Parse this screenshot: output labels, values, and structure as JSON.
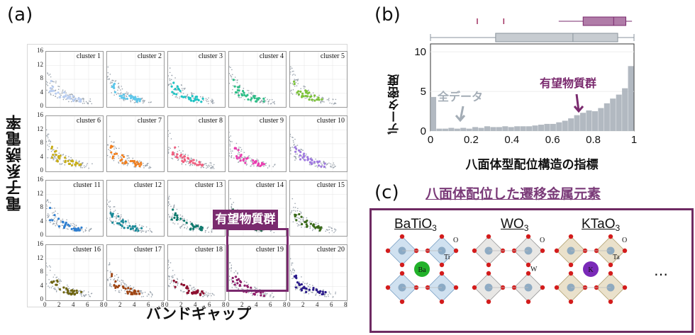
{
  "panel_a": {
    "label": "(a)",
    "ylabel": "電子系誘電率",
    "xlabel": "バンドギャップ",
    "y_ticks": [
      "16",
      "12",
      "8",
      "4",
      "0"
    ],
    "x_ticks": [
      "0",
      "2",
      "4",
      "6",
      "8"
    ],
    "highlight_label": "有望物質群",
    "highlight_cluster": "cluster 19",
    "clusters": [
      {
        "name": "cluster 1",
        "color": "#b9cdf0"
      },
      {
        "name": "cluster 2",
        "color": "#5fc7ea"
      },
      {
        "name": "cluster 3",
        "color": "#1ec4c4"
      },
      {
        "name": "cluster 4",
        "color": "#2fbf88"
      },
      {
        "name": "cluster 5",
        "color": "#7cc23a"
      },
      {
        "name": "cluster 6",
        "color": "#c7ad1a"
      },
      {
        "name": "cluster 7",
        "color": "#f07f1f"
      },
      {
        "name": "cluster 8",
        "color": "#ef5e7e"
      },
      {
        "name": "cluster 9",
        "color": "#e83fb0"
      },
      {
        "name": "cluster 10",
        "color": "#a07ae0"
      },
      {
        "name": "cluster 11",
        "color": "#2f7fd0"
      },
      {
        "name": "cluster 12",
        "color": "#1a8a99"
      },
      {
        "name": "cluster 13",
        "color": "#107a6e"
      },
      {
        "name": "cluster 14",
        "color": "#2a7050"
      },
      {
        "name": "cluster 15",
        "color": "#3a6a1a"
      },
      {
        "name": "cluster 16",
        "color": "#6e6410"
      },
      {
        "name": "cluster 17",
        "color": "#9e4412"
      },
      {
        "name": "cluster 18",
        "color": "#8e1030"
      },
      {
        "name": "cluster 19",
        "color": "#8e1e6a"
      },
      {
        "name": "cluster 20",
        "color": "#2a1a8a"
      }
    ]
  },
  "panel_b": {
    "label": "(b)",
    "ylabel": "データ密度",
    "xlabel": "八面体型配位構造の指標",
    "y_ticks": [
      "10",
      "5",
      "0"
    ],
    "x_ticks": [
      "0",
      "0.2",
      "0.4",
      "0.6",
      "0.8",
      "1"
    ],
    "all_label": "全データ",
    "promising_label": "有望物質群",
    "all_color": "#a4adb6",
    "promising_color": "#7a2a6e"
  },
  "panel_c": {
    "label": "(c)",
    "title": "八面体配位した遷移金属元素",
    "title_color": "#7a3a78",
    "frame_color": "#6e2a62",
    "structures": [
      {
        "name": "BaTiO",
        "sub": "3",
        "atoms": [
          "Ba",
          "Ti",
          "O"
        ]
      },
      {
        "name": "WO",
        "sub": "3",
        "atoms": [
          "W",
          "O"
        ]
      },
      {
        "name": "KTaO",
        "sub": "3",
        "atoms": [
          "K",
          "Ta",
          "O"
        ]
      }
    ],
    "ellipsis": "…"
  },
  "chart_data": {
    "type": "bar",
    "xlabel": "八面体型配位構造の指標",
    "ylabel": "データ密度",
    "xlim": [
      0,
      1
    ],
    "ylim": [
      0,
      11
    ],
    "series": [
      {
        "name": "全データ",
        "values": [
          4.3,
          0.3,
          0.3,
          0.4,
          0.3,
          0.4,
          0.3,
          0.5,
          0.4,
          0.6,
          0.5,
          0.5,
          0.6,
          0.5,
          0.6,
          0.6,
          0.6,
          0.7,
          0.8,
          0.9,
          0.9,
          1.1,
          1.3,
          1.6,
          2.0,
          2.3,
          2.6,
          2.5,
          2.9,
          3.5,
          4.1,
          4.6,
          5.4,
          8.2
        ]
      },
      {
        "name": "有望物質群",
        "values": [
          0,
          0,
          0,
          0,
          0,
          0,
          0,
          0,
          0,
          0,
          0,
          0,
          0,
          0,
          0,
          0,
          0,
          0,
          0,
          0,
          0,
          0,
          0,
          0,
          0,
          0,
          0,
          0,
          0,
          0,
          0,
          0,
          0,
          0
        ]
      }
    ]
  }
}
